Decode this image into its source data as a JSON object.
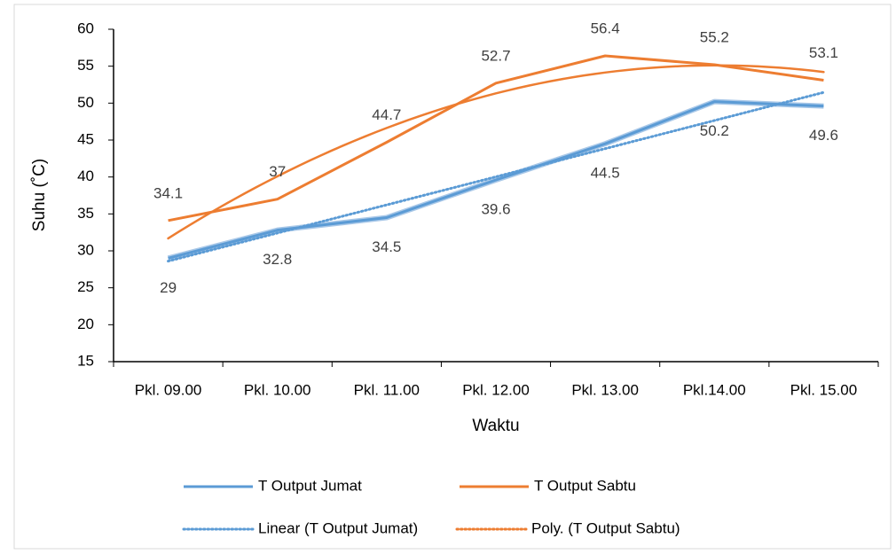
{
  "chart_data": {
    "type": "line",
    "xlabel": "Waktu",
    "ylabel": "Suhu (˚C)",
    "categories": [
      "Pkl. 09.00",
      "Pkl. 10.00",
      "Pkl. 11.00",
      "Pkl. 12.00",
      "Pkl. 13.00",
      "Pkl.14.00",
      "Pkl. 15.00"
    ],
    "series": [
      {
        "name": "T Output Jumat",
        "color": "#5b9bd5",
        "values": [
          29,
          32.8,
          34.5,
          39.6,
          44.5,
          50.2,
          49.6
        ],
        "trendline": {
          "name": "Linear (T Output Jumat)",
          "kind": "linear",
          "order": 1
        }
      },
      {
        "name": "T Output Sabtu",
        "color": "#ed7d31",
        "values": [
          34.1,
          37,
          44.7,
          52.7,
          56.4,
          55.2,
          53.1
        ],
        "trendline": {
          "name": "Poly. (T Output Sabtu)",
          "kind": "poly",
          "order": 2
        }
      }
    ],
    "ylim": [
      15,
      60
    ],
    "yticks": [
      15,
      20,
      25,
      30,
      35,
      40,
      45,
      50,
      55,
      60
    ],
    "grid": false,
    "legend": "bottom",
    "data_labels": true
  }
}
